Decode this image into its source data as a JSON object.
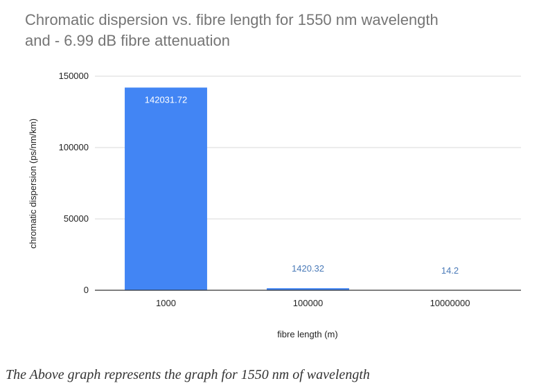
{
  "chart_data": {
    "type": "bar",
    "title_line1": "Chromatic dispersion  vs. fibre length for 1550 nm wavelength",
    "title_line2": "and - 6.99 dB fibre attenuation",
    "xlabel": "fibre length (m)",
    "ylabel": "chromatic dispersion (ps/nm/km)",
    "categories": [
      "1000",
      "100000",
      "10000000"
    ],
    "values": [
      142031.72,
      1420.32,
      14.2
    ],
    "value_labels": [
      "142031.72",
      "1420.32",
      "14.2"
    ],
    "ylim": [
      0,
      150000
    ],
    "yticks": [
      0,
      50000,
      100000,
      150000
    ],
    "ytick_labels": [
      "0",
      "50000",
      "100000",
      "150000"
    ],
    "grid": true,
    "legend": "none",
    "bar_color": "#4285f4"
  },
  "caption": "The Above graph represents the graph for 1550 nm of wavelength"
}
